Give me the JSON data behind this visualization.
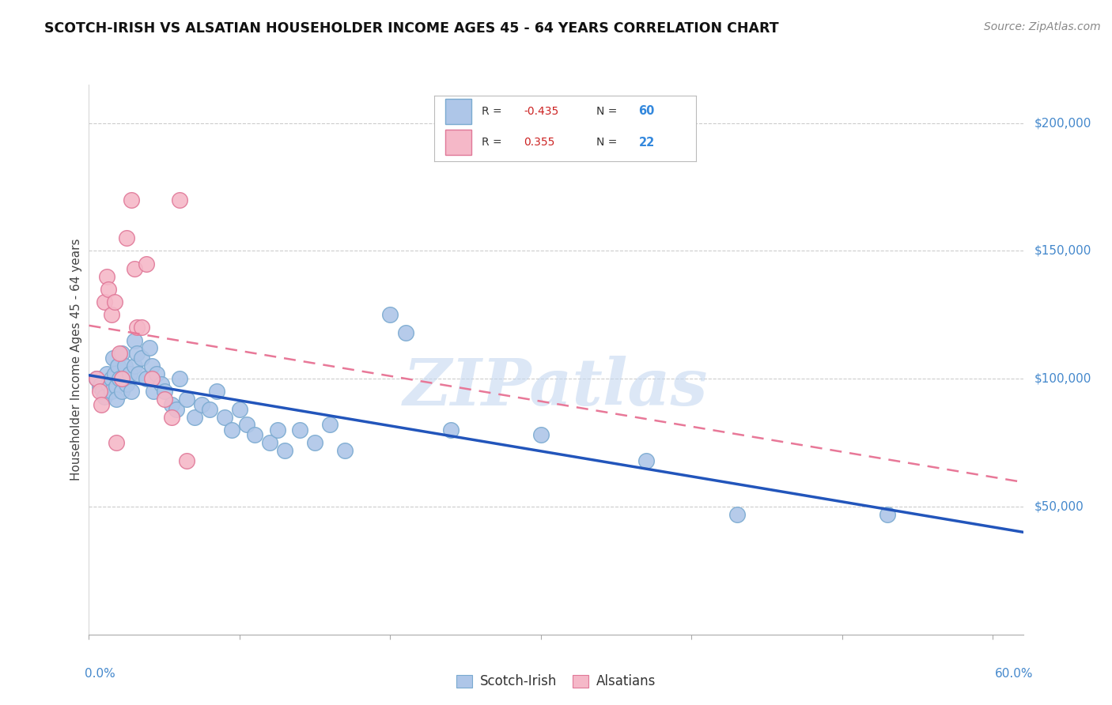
{
  "title": "SCOTCH-IRISH VS ALSATIAN HOUSEHOLDER INCOME AGES 45 - 64 YEARS CORRELATION CHART",
  "source": "Source: ZipAtlas.com",
  "ylabel": "Householder Income Ages 45 - 64 years",
  "right_ytick_labels": [
    "$50,000",
    "$100,000",
    "$150,000",
    "$200,000"
  ],
  "right_ytick_values": [
    50000,
    100000,
    150000,
    200000
  ],
  "ylim": [
    0,
    215000
  ],
  "xlim": [
    0.0,
    0.62
  ],
  "scotch_irish_color": "#aec6e8",
  "scotch_irish_edge_color": "#7aaad0",
  "alsatian_color": "#f5b8c8",
  "alsatian_edge_color": "#e07898",
  "scotch_irish_line_color": "#2255bb",
  "alsatian_line_color": "#e87898",
  "alsatian_line_dash": [
    6,
    4
  ],
  "watermark_text": "ZIPatlas",
  "watermark_color": "#c5d8f0",
  "legend_R_color": "#cc2222",
  "legend_N_color": "#3388dd",
  "scotch_irish_label": "Scotch-Irish",
  "alsatian_label": "Alsatians",
  "scotch_irish_x": [
    0.005,
    0.007,
    0.008,
    0.009,
    0.01,
    0.012,
    0.013,
    0.015,
    0.015,
    0.016,
    0.017,
    0.018,
    0.018,
    0.019,
    0.02,
    0.022,
    0.022,
    0.024,
    0.025,
    0.027,
    0.028,
    0.03,
    0.03,
    0.032,
    0.033,
    0.035,
    0.038,
    0.04,
    0.042,
    0.043,
    0.045,
    0.048,
    0.05,
    0.055,
    0.058,
    0.06,
    0.065,
    0.07,
    0.075,
    0.08,
    0.085,
    0.09,
    0.095,
    0.1,
    0.105,
    0.11,
    0.12,
    0.125,
    0.13,
    0.14,
    0.15,
    0.16,
    0.17,
    0.2,
    0.21,
    0.24,
    0.3,
    0.37,
    0.43,
    0.53
  ],
  "scotch_irish_y": [
    100000,
    97000,
    98000,
    95000,
    93000,
    102000,
    98000,
    100000,
    95000,
    108000,
    102000,
    97000,
    92000,
    105000,
    100000,
    110000,
    95000,
    105000,
    98000,
    102000,
    95000,
    115000,
    105000,
    110000,
    102000,
    108000,
    100000,
    112000,
    105000,
    95000,
    102000,
    98000,
    95000,
    90000,
    88000,
    100000,
    92000,
    85000,
    90000,
    88000,
    95000,
    85000,
    80000,
    88000,
    82000,
    78000,
    75000,
    80000,
    72000,
    80000,
    75000,
    82000,
    72000,
    125000,
    118000,
    80000,
    78000,
    68000,
    47000,
    47000
  ],
  "alsatian_x": [
    0.005,
    0.007,
    0.008,
    0.01,
    0.012,
    0.013,
    0.015,
    0.017,
    0.018,
    0.02,
    0.022,
    0.025,
    0.028,
    0.03,
    0.032,
    0.035,
    0.038,
    0.042,
    0.05,
    0.055,
    0.06,
    0.065
  ],
  "alsatian_y": [
    100000,
    95000,
    90000,
    130000,
    140000,
    135000,
    125000,
    130000,
    75000,
    110000,
    100000,
    155000,
    170000,
    143000,
    120000,
    120000,
    145000,
    100000,
    92000,
    85000,
    170000,
    68000
  ]
}
